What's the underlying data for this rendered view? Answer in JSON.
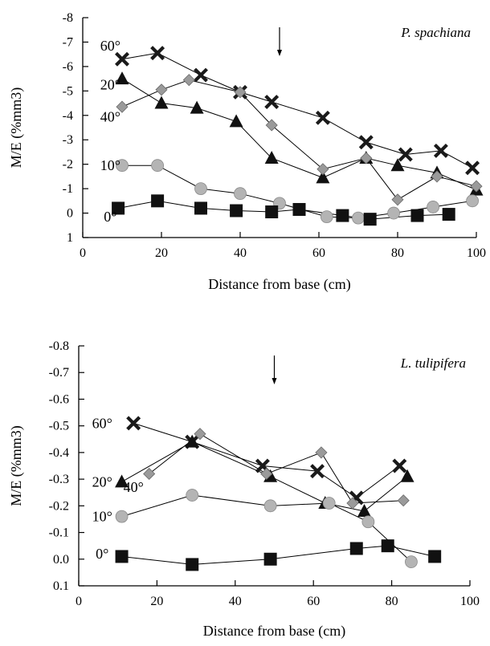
{
  "chart_data": [
    {
      "type": "line",
      "title": "P. spachiana",
      "xlabel": "Distance from base (cm)",
      "ylabel": "M/E (%mm3)",
      "xlim": [
        0,
        100
      ],
      "ylim": [
        1,
        -8
      ],
      "x_ticks": [
        0,
        20,
        40,
        60,
        80,
        100
      ],
      "x_tick_labels": [
        "0",
        "20",
        "40",
        "60",
        "80",
        "100"
      ],
      "y_ticks": [
        -8,
        -7,
        -6,
        -5,
        -4,
        -3,
        -2,
        -1,
        0,
        1
      ],
      "y_tick_labels": [
        "-8",
        "-7",
        "-6",
        "-5",
        "-4",
        "-3",
        "-2",
        "-1",
        "0",
        "1"
      ],
      "arrow_x": 50,
      "series": [
        {
          "name": "60°",
          "marker": "x",
          "color": "#1a1a1a",
          "label_at": [
            7,
            -6.85
          ],
          "x": [
            10,
            19,
            30,
            40,
            48,
            61,
            72,
            82,
            91,
            99
          ],
          "y": [
            -6.3,
            -6.55,
            -5.65,
            -4.95,
            -4.55,
            -3.9,
            -2.9,
            -2.4,
            -2.55,
            -1.85
          ]
        },
        {
          "name": "20°",
          "marker": "triangle",
          "color": "#111111",
          "label_at": [
            7,
            -5.25
          ],
          "x": [
            10,
            20,
            29,
            39,
            48,
            61,
            72,
            80,
            90,
            100
          ],
          "y": [
            -5.5,
            -4.5,
            -4.3,
            -3.75,
            -2.25,
            -1.45,
            -2.25,
            -1.95,
            -1.65,
            -0.95
          ]
        },
        {
          "name": "40°",
          "marker": "diamond",
          "color": "#9a9a9a",
          "label_at": [
            7,
            -3.95
          ],
          "x": [
            10,
            20,
            27,
            40,
            48,
            61,
            72,
            80,
            90,
            100
          ],
          "y": [
            -4.35,
            -5.05,
            -5.45,
            -4.95,
            -3.6,
            -1.8,
            -2.25,
            -0.55,
            -1.5,
            -1.1
          ]
        },
        {
          "name": "10°",
          "marker": "circle",
          "color": "#b4b4b4",
          "label_at": [
            7,
            -1.95
          ],
          "x": [
            10,
            19,
            30,
            40,
            50,
            62,
            70,
            79,
            89,
            99
          ],
          "y": [
            -1.95,
            -1.95,
            -1.0,
            -0.8,
            -0.4,
            0.15,
            0.2,
            0.0,
            -0.25,
            -0.5
          ]
        },
        {
          "name": "0°",
          "marker": "square",
          "color": "#111111",
          "label_at": [
            7,
            0.15
          ],
          "x": [
            9,
            19,
            30,
            39,
            48,
            55,
            66,
            73,
            85,
            93
          ],
          "y": [
            -0.2,
            -0.5,
            -0.2,
            -0.1,
            -0.05,
            -0.15,
            0.1,
            0.25,
            0.1,
            0.05
          ]
        }
      ]
    },
    {
      "type": "line",
      "title": "L. tulipifera",
      "xlabel": "Distance from base (cm)",
      "ylabel": "M/E (%mm3)",
      "xlim": [
        0,
        100
      ],
      "ylim": [
        0.1,
        -0.8
      ],
      "x_ticks": [
        0,
        20,
        40,
        60,
        80,
        100
      ],
      "x_tick_labels": [
        "0",
        "20",
        "40",
        "60",
        "80",
        "100"
      ],
      "y_ticks": [
        -0.8,
        -0.7,
        -0.6,
        -0.5,
        -0.4,
        -0.3,
        -0.2,
        -0.1,
        0.0,
        0.1
      ],
      "y_tick_labels": [
        "-0.8",
        "-0.7",
        "-0.6",
        "-0.5",
        "-0.4",
        "-0.3",
        "-0.2",
        "-0.1",
        "0.0",
        "0.1"
      ],
      "arrow_x": 50,
      "series": [
        {
          "name": "60°",
          "marker": "x",
          "color": "#1a1a1a",
          "label_at": [
            6,
            -0.51
          ],
          "x": [
            14,
            29,
            47,
            61,
            71,
            82
          ],
          "y": [
            -0.51,
            -0.44,
            -0.35,
            -0.33,
            -0.23,
            -0.35
          ]
        },
        {
          "name": "20°",
          "marker": "triangle",
          "color": "#111111",
          "label_at": [
            6,
            -0.29
          ],
          "x": [
            11,
            29,
            49,
            63,
            73,
            84
          ],
          "y": [
            -0.29,
            -0.44,
            -0.31,
            -0.21,
            -0.18,
            -0.31
          ]
        },
        {
          "name": "40°",
          "marker": "diamond",
          "color": "#9a9a9a",
          "label_at": [
            14,
            -0.27
          ],
          "x": [
            18,
            31,
            48,
            62,
            70,
            83
          ],
          "y": [
            -0.32,
            -0.47,
            -0.32,
            -0.4,
            -0.21,
            -0.22
          ]
        },
        {
          "name": "10°",
          "marker": "circle",
          "color": "#b4b4b4",
          "label_at": [
            6,
            -0.16
          ],
          "x": [
            11,
            29,
            49,
            64,
            74,
            85
          ],
          "y": [
            -0.16,
            -0.24,
            -0.2,
            -0.21,
            -0.14,
            0.01
          ]
        },
        {
          "name": "0°",
          "marker": "square",
          "color": "#111111",
          "label_at": [
            6,
            -0.02
          ],
          "x": [
            11,
            29,
            49,
            71,
            79,
            91
          ],
          "y": [
            -0.01,
            0.02,
            0.0,
            -0.04,
            -0.05,
            -0.01
          ]
        }
      ]
    }
  ]
}
